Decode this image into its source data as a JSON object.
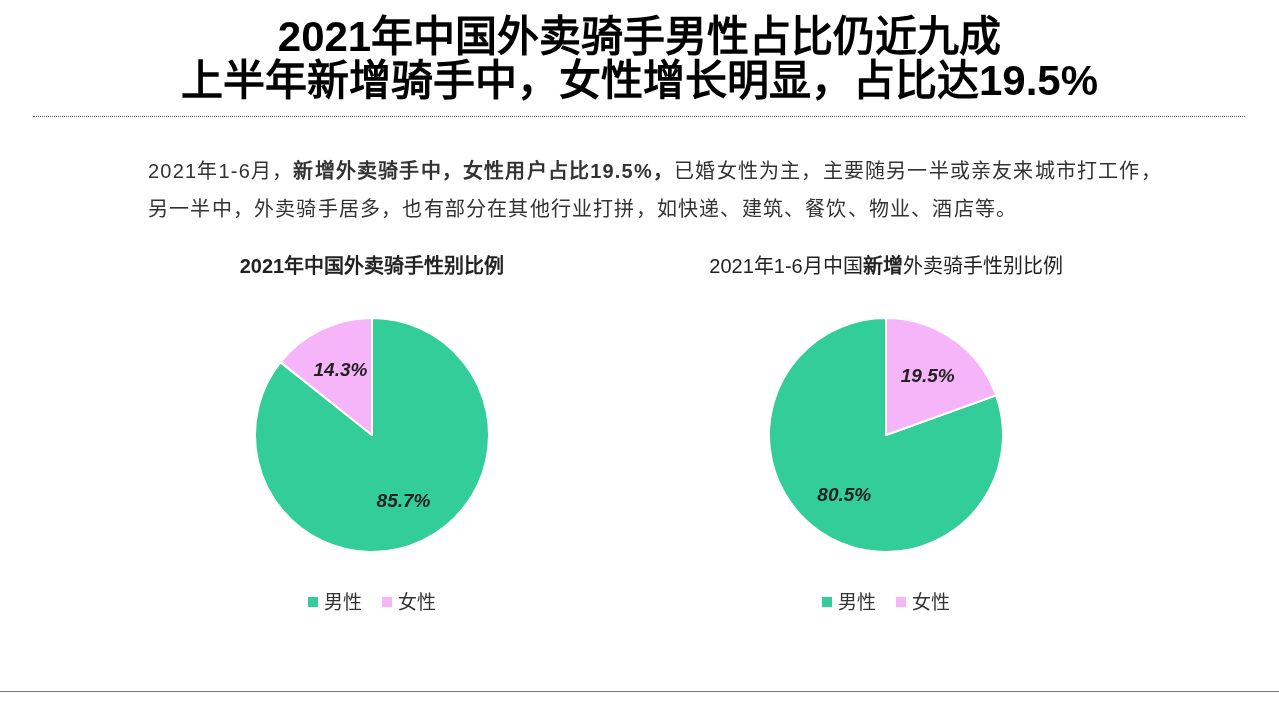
{
  "chart_data": [
    {
      "type": "other",
      "title": "2021年中国外卖骑手男性占比仍近九成",
      "subtitle": "上半年新增骑手中，女性增长明显，占比达19.5%",
      "annotations": [
        "2021年1-6月，**新增外卖骑手中，女性用户占比19.5%，**已婚女性为主，主要随另一半或亲友来城市打工作，另一半中，外卖骑手居多，也有部分在其他行业打拼，如快递、建筑、餐饮、物业、酒店等。"
      ]
    },
    {
      "type": "pie",
      "title": "2021年中国外卖骑手性别比例",
      "categories": [
        "男性",
        "女性"
      ],
      "values": [
        85.7,
        14.3
      ],
      "colors": [
        "#33cd99",
        "#f6b5f8"
      ],
      "value_labels": [
        "85.7%",
        "14.3%"
      ],
      "legend": "bottom"
    },
    {
      "type": "pie",
      "title": "2021年1-6月中国**新增**外卖骑手性别比例",
      "categories": [
        "男性",
        "女性"
      ],
      "values": [
        80.5,
        19.5
      ],
      "colors": [
        "#33cd99",
        "#f6b5f8"
      ],
      "value_labels": [
        "80.5%",
        "19.5%"
      ],
      "legend": "bottom"
    }
  ]
}
